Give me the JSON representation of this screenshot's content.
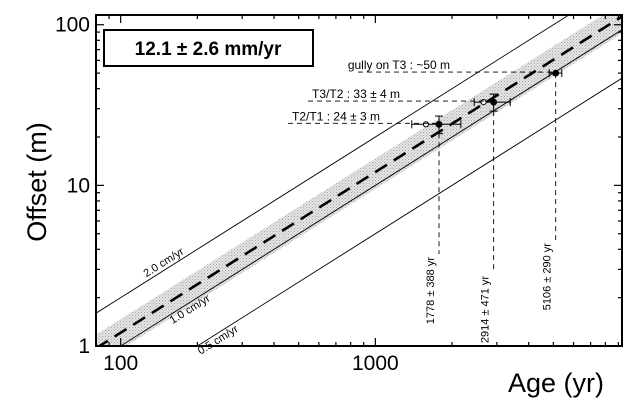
{
  "chart_data": {
    "type": "scatter",
    "title": "",
    "xlabel": "Age (yr)",
    "ylabel": "Offset (m)",
    "xscale": "log",
    "yscale": "log",
    "xlim": [
      80,
      9300
    ],
    "ylim": [
      1,
      115
    ],
    "xticks": [
      100,
      1000
    ],
    "xtick_labels": [
      "100",
      "1000"
    ],
    "yticks": [
      1,
      10,
      100
    ],
    "ytick_labels": [
      "1",
      "10",
      "100"
    ],
    "grid": false,
    "slip_rate_box": "12.1 ± 2.6 mm/yr",
    "best_fit": {
      "rate_m_per_yr": 0.0121,
      "style": "dashed"
    },
    "uncertainty_band": {
      "rate_min_m_per_yr": 0.0095,
      "rate_max_m_per_yr": 0.0147
    },
    "reference_lines": [
      {
        "label": "2.0 cm/yr",
        "rate_m_per_yr": 0.02
      },
      {
        "label": "1.0 cm/yr",
        "rate_m_per_yr": 0.01
      },
      {
        "label": "0.5 cm/yr",
        "rate_m_per_yr": 0.005
      }
    ],
    "points": [
      {
        "label": "T2/T1 : 24 ± 3 m",
        "age_label": "1778 ± 388 yr",
        "age": 1778,
        "age_err": 388,
        "offset": 24,
        "offset_err": 3,
        "open_point_age": 1580
      },
      {
        "label": "T3/T2 : 33 ± 4 m",
        "age_label": "2914 ± 471 yr",
        "age": 2914,
        "age_err": 471,
        "offset": 33,
        "offset_err": 4,
        "open_point_age": 2660
      },
      {
        "label": "gully on T3 : ~50 m",
        "age_label": "5106 ± 290 yr",
        "age": 5106,
        "age_err": 290,
        "offset": 50,
        "offset_err": 0,
        "open_point_age": null
      }
    ]
  }
}
